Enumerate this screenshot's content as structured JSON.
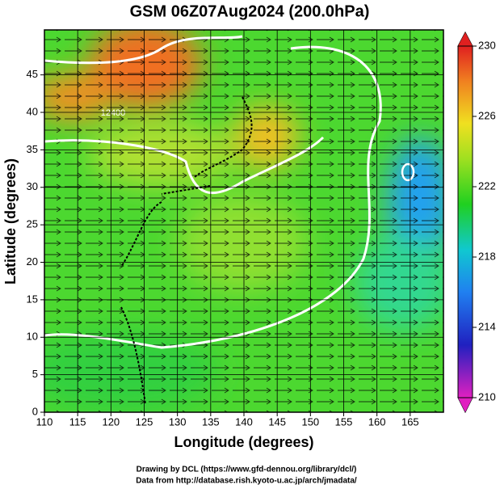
{
  "title": "GSM 06Z07Aug2024 (200.0hPa)",
  "x_axis": {
    "label": "Longitude (degrees)",
    "lim": [
      110,
      170
    ],
    "ticks": [
      110,
      115,
      120,
      125,
      130,
      135,
      140,
      145,
      150,
      155,
      160,
      165
    ]
  },
  "y_axis": {
    "label": "Latitude  (degrees)",
    "lim": [
      0,
      51
    ],
    "ticks": [
      0,
      5,
      10,
      15,
      20,
      25,
      30,
      35,
      40,
      45
    ]
  },
  "colorbar": {
    "lim": [
      210,
      230
    ],
    "ticks": [
      210,
      214,
      218,
      222,
      226,
      230
    ]
  },
  "contour_label": "12400",
  "credits": [
    "Drawing by DCL (https://www.gfd-dennou.org/library/dcl/)",
    "Data from http://database.rish.kyoto-u.ac.jp/arch/jmadata/"
  ]
}
